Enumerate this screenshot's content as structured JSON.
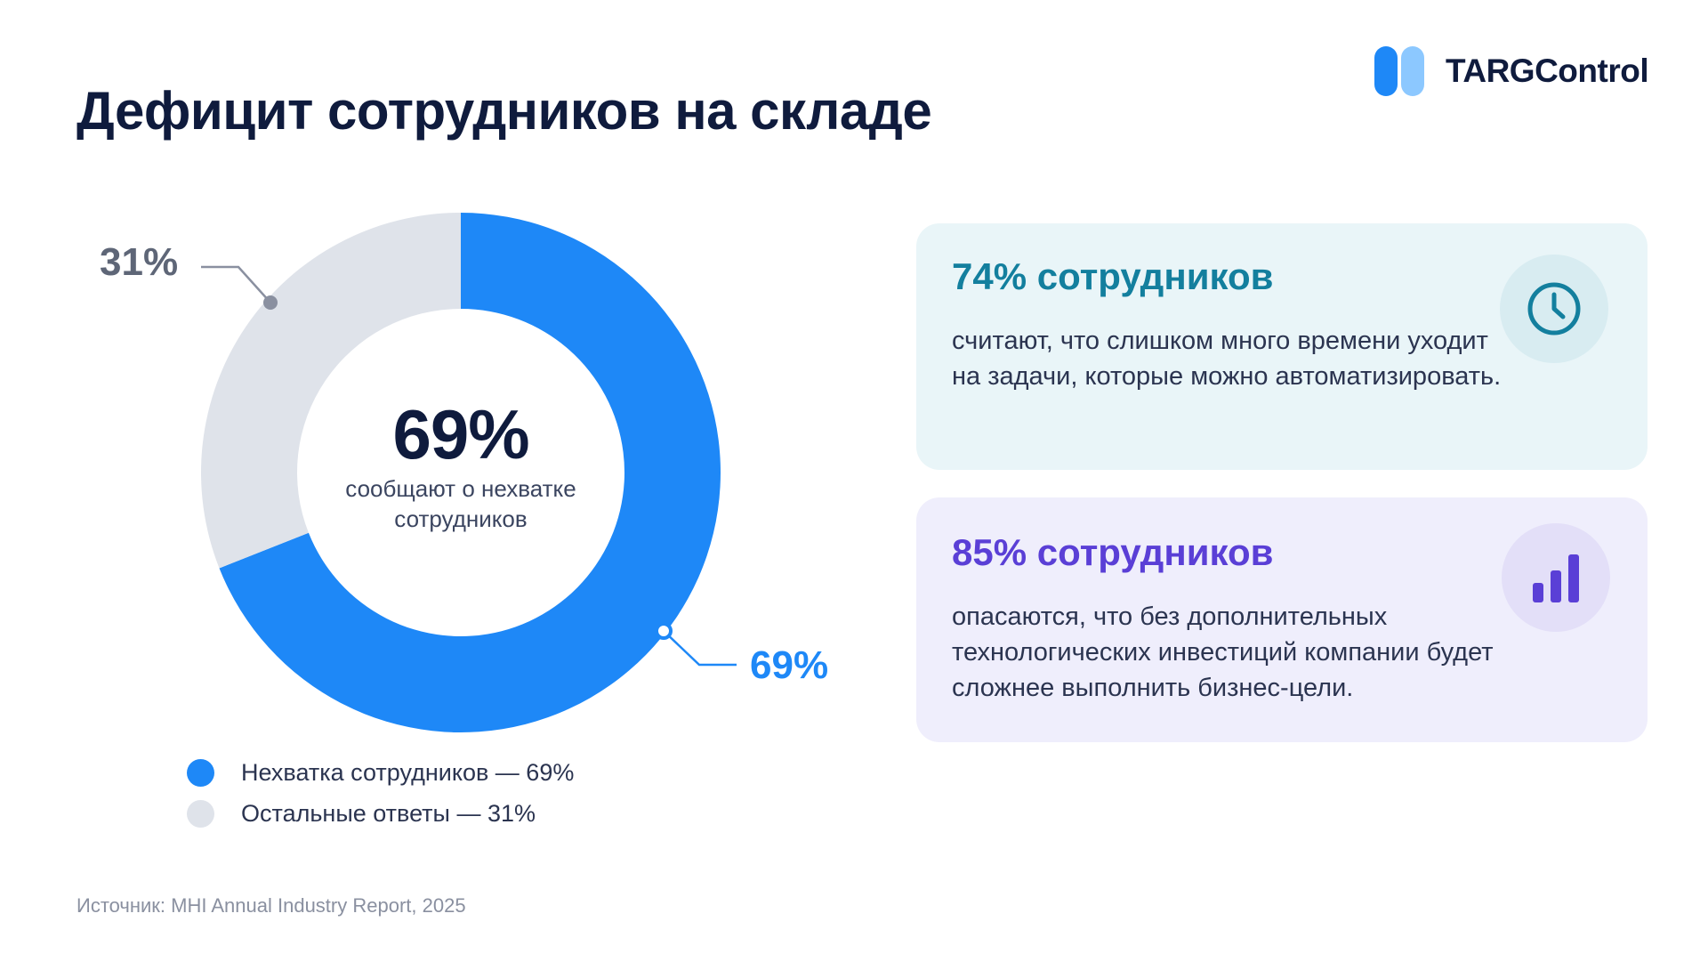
{
  "header": {
    "title": "Дефицит сотрудников на складе",
    "logo_text": "TARGControl"
  },
  "colors": {
    "primary": "#1e88f7",
    "rest": "#dfe3ea",
    "title": "#0f1b3d",
    "teal": "#137f9e",
    "purple": "#5a3fd6"
  },
  "chart_data": {
    "type": "pie",
    "variant": "donut",
    "labels": [
      "Нехватка сотрудников",
      "Остальные ответы"
    ],
    "values": [
      69,
      31
    ],
    "unit": "%",
    "slice_labels": [
      "69%",
      "31%"
    ],
    "center_value": "69%",
    "center_caption": "сообщают о нехватке сотрудников",
    "legend": [
      {
        "label": "Нехватка сотрудников — 69%",
        "color": "#1e88f7"
      },
      {
        "label": "Остальные ответы — 31%",
        "color": "#dfe3ea"
      }
    ],
    "legend_position": "bottom"
  },
  "cards": [
    {
      "heading": "74% сотрудников",
      "text": "считают, что слишком много времени уходит на задачи, которые можно автоматизировать.",
      "icon": "clock-icon"
    },
    {
      "heading": "85% сотрудников",
      "text": "опасаются, что без дополнительных технологических инвестиций компании будет сложнее выполнить бизнес-цели.",
      "icon": "bar-chart-icon"
    }
  ],
  "source": "Источник: MHI Annual Industry Report, 2025"
}
